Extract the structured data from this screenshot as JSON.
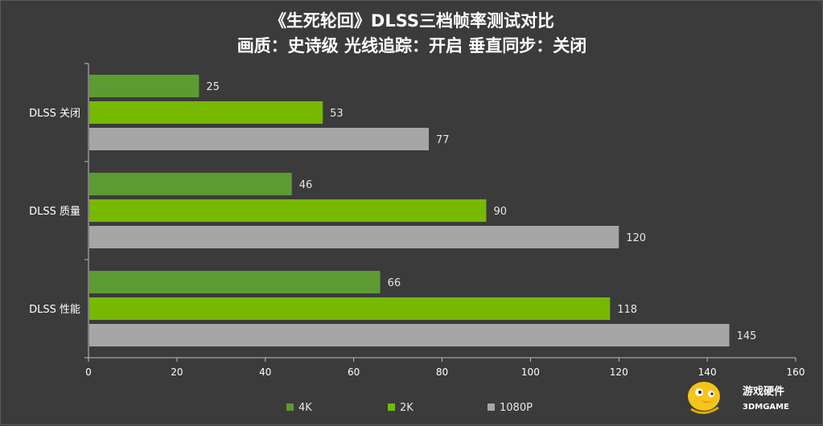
{
  "chart_data": {
    "type": "bar",
    "orientation": "horizontal",
    "title": "《生死轮回》DLSS三档帧率测试对比",
    "subtitle": "画质：史诗级 光线追踪：开启  垂直同步：关闭",
    "categories": [
      "DLSS 关闭",
      "DLSS 质量",
      "DLSS 性能"
    ],
    "series": [
      {
        "name": "4K",
        "values": [
          25,
          46,
          66
        ],
        "color": "#5c9b32"
      },
      {
        "name": "2K",
        "values": [
          53,
          90,
          118
        ],
        "color": "#76b900"
      },
      {
        "name": "1080P",
        "values": [
          77,
          120,
          145
        ],
        "color": "#a6a6a6"
      }
    ],
    "xlim": [
      0,
      160
    ],
    "xticks": [
      0,
      20,
      40,
      60,
      80,
      100,
      120,
      140,
      160
    ],
    "xlabel": "",
    "ylabel": "",
    "grid": false,
    "legend_position": "bottom"
  },
  "watermark": {
    "text_cn": "游戏硬件",
    "text_en": "3DMGAME",
    "icon": "duck-mascot-icon"
  }
}
